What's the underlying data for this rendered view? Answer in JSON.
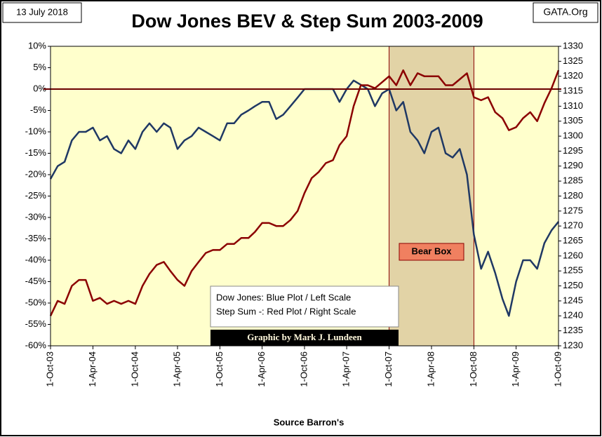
{
  "chart_data": {
    "type": "line",
    "title": "Dow Jones BEV & Step Sum 2003-2009",
    "date_note": "13 July 2018",
    "site": "GATA.Org",
    "source": "Source Barron's",
    "legend_text": [
      "Dow Jones: Blue Plot / Left Scale",
      "Step Sum -: Red Plot / Right Scale"
    ],
    "credit": "Graphic by Mark J. Lundeen",
    "bear_box": {
      "label": "Bear Box",
      "x": [
        "2007-10-01",
        "2008-10-01"
      ]
    },
    "hline": 0,
    "grid": false,
    "x": [
      "2003-10-01",
      "2003-11-01",
      "2003-12-01",
      "2004-01-01",
      "2004-02-01",
      "2004-03-01",
      "2004-04-01",
      "2004-05-01",
      "2004-06-01",
      "2004-07-01",
      "2004-08-01",
      "2004-09-01",
      "2004-10-01",
      "2004-11-01",
      "2004-12-01",
      "2005-01-01",
      "2005-02-01",
      "2005-03-01",
      "2005-04-01",
      "2005-05-01",
      "2005-06-01",
      "2005-07-01",
      "2005-08-01",
      "2005-09-01",
      "2005-10-01",
      "2005-11-01",
      "2005-12-01",
      "2006-01-01",
      "2006-02-01",
      "2006-03-01",
      "2006-04-01",
      "2006-05-01",
      "2006-06-01",
      "2006-07-01",
      "2006-08-01",
      "2006-09-01",
      "2006-10-01",
      "2006-11-01",
      "2006-12-01",
      "2007-01-01",
      "2007-02-01",
      "2007-03-01",
      "2007-04-01",
      "2007-05-01",
      "2007-06-01",
      "2007-07-01",
      "2007-08-01",
      "2007-09-01",
      "2007-10-01",
      "2007-11-01",
      "2007-12-01",
      "2008-01-01",
      "2008-02-01",
      "2008-03-01",
      "2008-04-01",
      "2008-05-01",
      "2008-06-01",
      "2008-07-01",
      "2008-08-01",
      "2008-09-01",
      "2008-10-01",
      "2008-11-01",
      "2008-12-01",
      "2009-01-01",
      "2009-02-01",
      "2009-03-01",
      "2009-04-01",
      "2009-05-01",
      "2009-06-01",
      "2009-07-01",
      "2009-08-01",
      "2009-09-01",
      "2009-10-01"
    ],
    "xlim": [
      "2003-10-01",
      "2009-10-01"
    ],
    "xticks": [
      {
        "value": "2003-10-01",
        "label": "1-Oct-03"
      },
      {
        "value": "2004-04-01",
        "label": "1-Apr-04"
      },
      {
        "value": "2004-10-01",
        "label": "1-Oct-04"
      },
      {
        "value": "2005-04-01",
        "label": "1-Apr-05"
      },
      {
        "value": "2005-10-01",
        "label": "1-Oct-05"
      },
      {
        "value": "2006-04-01",
        "label": "1-Apr-06"
      },
      {
        "value": "2006-10-01",
        "label": "1-Oct-06"
      },
      {
        "value": "2007-04-01",
        "label": "1-Apr-07"
      },
      {
        "value": "2007-10-01",
        "label": "1-Oct-07"
      },
      {
        "value": "2008-04-01",
        "label": "1-Apr-08"
      },
      {
        "value": "2008-10-01",
        "label": "1-Oct-08"
      },
      {
        "value": "2009-04-01",
        "label": "1-Apr-09"
      },
      {
        "value": "2009-10-01",
        "label": "1-Oct-09"
      }
    ],
    "ylim": [
      -60,
      10
    ],
    "yticks": [
      {
        "value": -60,
        "label": "-60%"
      },
      {
        "value": -55,
        "label": "-55%"
      },
      {
        "value": -50,
        "label": "-50%"
      },
      {
        "value": -45,
        "label": "-45%"
      },
      {
        "value": -40,
        "label": "-40%"
      },
      {
        "value": -35,
        "label": "-35%"
      },
      {
        "value": -30,
        "label": "-30%"
      },
      {
        "value": -25,
        "label": "-25%"
      },
      {
        "value": -20,
        "label": "-20%"
      },
      {
        "value": -15,
        "label": "-15%"
      },
      {
        "value": -10,
        "label": "-10%"
      },
      {
        "value": -5,
        "label": "-5%"
      },
      {
        "value": 0,
        "label": "0%"
      },
      {
        "value": 5,
        "label": "5%"
      },
      {
        "value": 10,
        "label": "10%"
      }
    ],
    "y2lim": [
      1230,
      1330
    ],
    "y2ticks": [
      1230,
      1235,
      1240,
      1245,
      1250,
      1255,
      1260,
      1265,
      1270,
      1275,
      1280,
      1285,
      1290,
      1295,
      1300,
      1305,
      1310,
      1315,
      1320,
      1325,
      1330
    ],
    "series": [
      {
        "name": "Dow Jones",
        "color": "#1f3864",
        "axis": "y",
        "values": [
          -21,
          -18,
          -17,
          -12,
          -10,
          -10,
          -9,
          -12,
          -11,
          -14,
          -15,
          -12,
          -14,
          -10,
          -8,
          -10,
          -8,
          -9,
          -14,
          -12,
          -11,
          -9,
          -10,
          -11,
          -12,
          -8,
          -8,
          -6,
          -5,
          -4,
          -3,
          -3,
          -7,
          -6,
          -4,
          -2,
          0,
          0,
          0,
          0,
          0,
          -3,
          0,
          2,
          1,
          0,
          -4,
          -1,
          0,
          -5,
          -3,
          -10,
          -12,
          -15,
          -10,
          -9,
          -15,
          -16,
          -14,
          -20,
          -34,
          -42,
          -38,
          -43,
          -49,
          -53,
          -45,
          -40,
          -40,
          -42,
          -36,
          -33,
          -31
        ]
      },
      {
        "name": "Step Sum",
        "color": "#8b0000",
        "axis": "y2",
        "values": [
          1240,
          1245,
          1244,
          1250,
          1252,
          1252,
          1245,
          1246,
          1244,
          1245,
          1244,
          1245,
          1244,
          1250,
          1254,
          1257,
          1258,
          1255,
          1252,
          1250,
          1255,
          1258,
          1261,
          1262,
          1262,
          1264,
          1264,
          1266,
          1266,
          1268,
          1271,
          1271,
          1270,
          1270,
          1272,
          1275,
          1281,
          1286,
          1288,
          1291,
          1292,
          1297,
          1300,
          1310,
          1317,
          1317,
          1316,
          1318,
          1320,
          1317,
          1322,
          1317,
          1321,
          1320,
          1320,
          1320,
          1317,
          1317,
          1319,
          1321,
          1313,
          1312,
          1313,
          1308,
          1306,
          1302,
          1303,
          1306,
          1308,
          1305,
          1311,
          1316,
          1322
        ]
      }
    ]
  }
}
